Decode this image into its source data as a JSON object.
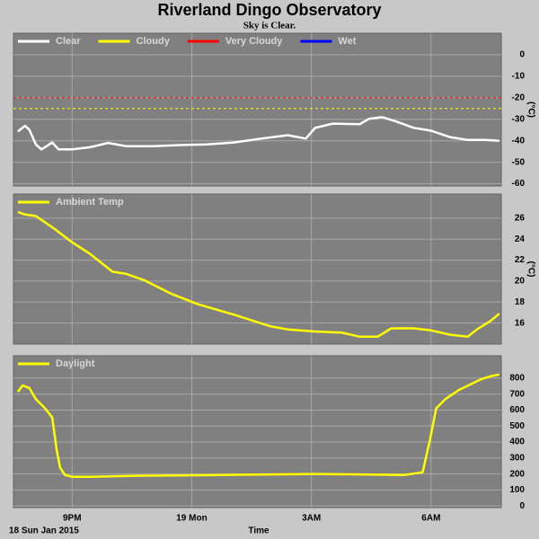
{
  "title": "Riverland Dingo Observatory",
  "subtitle": "Sky is Clear.",
  "x_axis": {
    "label": "Time",
    "date": "18 Sun Jan 2015",
    "xlim": [
      19.53,
      31.76
    ],
    "xticks": [
      {
        "value": 21,
        "label": "9PM"
      },
      {
        "value": 24,
        "label": "19 Mon"
      },
      {
        "value": 27,
        "label": "3AM"
      },
      {
        "value": 30,
        "label": "6AM"
      }
    ]
  },
  "chart_data": [
    {
      "type": "line",
      "y_label": "(°C)",
      "ylim": [
        -61,
        10
      ],
      "yticks": [
        0,
        -10,
        -20,
        -30,
        -40,
        -50,
        -60
      ],
      "grid": true,
      "series": [
        {
          "name": "Clear",
          "color": "#ffffff",
          "x": [
            19.64,
            19.82,
            19.93,
            20.09,
            20.23,
            20.36,
            20.5,
            20.66,
            21.0,
            21.45,
            21.9,
            22.35,
            23.03,
            23.7,
            24.38,
            25.06,
            25.73,
            26.41,
            26.86,
            27.09,
            27.54,
            28.21,
            28.44,
            28.78,
            29.12,
            29.57,
            30.0,
            30.47,
            30.92,
            31.37,
            31.71
          ],
          "values": [
            -35.7,
            -33,
            -35,
            -41.7,
            -44,
            -42.5,
            -40.8,
            -44,
            -44,
            -43,
            -41,
            -42.5,
            -42.5,
            -42,
            -41.7,
            -40.8,
            -39,
            -37.4,
            -39,
            -34,
            -32,
            -32.3,
            -29.8,
            -29,
            -31,
            -34,
            -35.3,
            -38.3,
            -39.6,
            -39.6,
            -40
          ]
        }
      ],
      "thresholds": [
        {
          "name": "Cloudy",
          "color": "#ffff00",
          "value": -25
        },
        {
          "name": "Very Cloudy",
          "color": "#ff0000",
          "value": -20
        }
      ],
      "legend_only": [
        {
          "name": "Wet",
          "color": "#0000ff"
        }
      ]
    },
    {
      "type": "line",
      "y_label": "(°C)",
      "ylim": [
        14,
        28.3
      ],
      "yticks": [
        16,
        18,
        20,
        22,
        24,
        26
      ],
      "grid": true,
      "series": [
        {
          "name": "Ambient Temp",
          "color": "#ffff00",
          "x": [
            19.64,
            19.82,
            20.09,
            20.55,
            21.0,
            21.45,
            22.01,
            22.35,
            22.8,
            23.48,
            24.15,
            25.06,
            25.96,
            26.41,
            27.09,
            27.76,
            28.21,
            28.66,
            29.0,
            29.57,
            30.0,
            30.47,
            30.92,
            31.15,
            31.49,
            31.71
          ],
          "values": [
            26.6,
            26.35,
            26.2,
            25.0,
            23.7,
            22.6,
            20.9,
            20.7,
            20.1,
            18.8,
            17.8,
            16.8,
            15.7,
            15.4,
            15.2,
            15.1,
            14.7,
            14.7,
            15.5,
            15.5,
            15.3,
            14.9,
            14.7,
            15.4,
            16.2,
            16.9
          ]
        }
      ]
    },
    {
      "type": "line",
      "ylim": [
        -10,
        940
      ],
      "yticks": [
        0,
        100,
        200,
        300,
        400,
        500,
        600,
        700,
        800
      ],
      "grid": true,
      "series": [
        {
          "name": "Daylight",
          "color": "#ffff00",
          "x": [
            19.64,
            19.76,
            19.93,
            20.09,
            20.32,
            20.5,
            20.61,
            20.7,
            20.82,
            21.0,
            21.45,
            22.58,
            24.83,
            27.09,
            29.34,
            29.79,
            29.97,
            30.13,
            30.36,
            30.7,
            31.03,
            31.26,
            31.49,
            31.71
          ],
          "values": [
            714,
            754,
            737,
            669,
            611,
            554,
            354,
            240,
            194,
            183,
            183,
            189,
            194,
            200,
            194,
            211,
            411,
            611,
            669,
            726,
            766,
            794,
            811,
            823
          ]
        }
      ]
    }
  ]
}
